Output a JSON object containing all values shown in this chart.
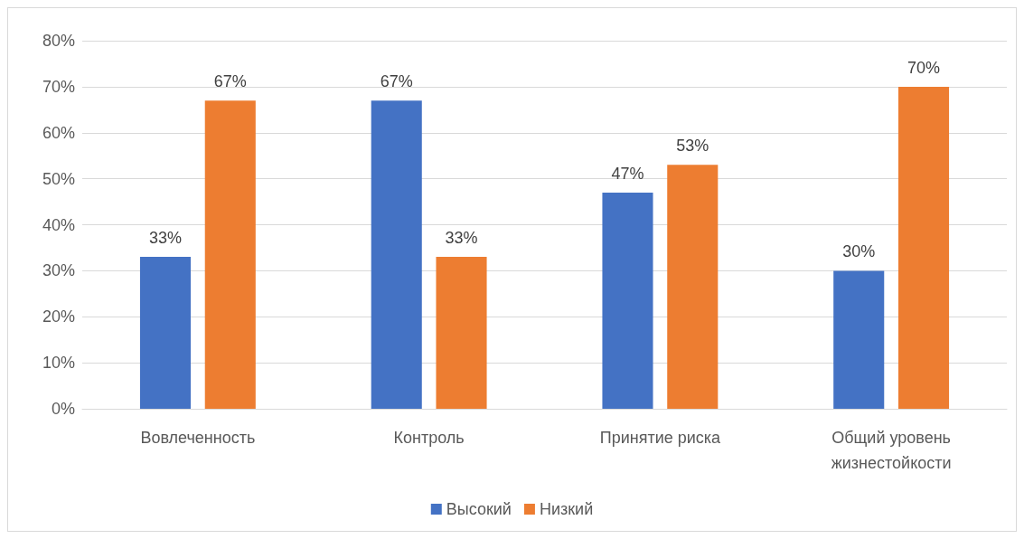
{
  "chart_data": {
    "type": "bar",
    "categories": [
      "Вовлеченность",
      "Контроль",
      "Принятие риска",
      "Общий уровень жизнестойкости"
    ],
    "series": [
      {
        "name": "Высокий",
        "color": "#4472c4",
        "values": [
          33,
          67,
          47,
          30
        ],
        "value_labels": [
          "33%",
          "67%",
          "47%",
          "30%"
        ]
      },
      {
        "name": "Низкий",
        "color": "#ed7d31",
        "values": [
          67,
          33,
          53,
          70
        ],
        "value_labels": [
          "67%",
          "33%",
          "53%",
          "70%"
        ]
      }
    ],
    "ylim": [
      0,
      80
    ],
    "yticks": [
      {
        "value": 0,
        "label": "0%"
      },
      {
        "value": 10,
        "label": "10%"
      },
      {
        "value": 20,
        "label": "20%"
      },
      {
        "value": 30,
        "label": "30%"
      },
      {
        "value": 40,
        "label": "40%"
      },
      {
        "value": 50,
        "label": "50%"
      },
      {
        "value": 60,
        "label": "60%"
      },
      {
        "value": 70,
        "label": "70%"
      },
      {
        "value": 80,
        "label": "80%"
      }
    ],
    "grid": "y",
    "legend": "bottom"
  }
}
